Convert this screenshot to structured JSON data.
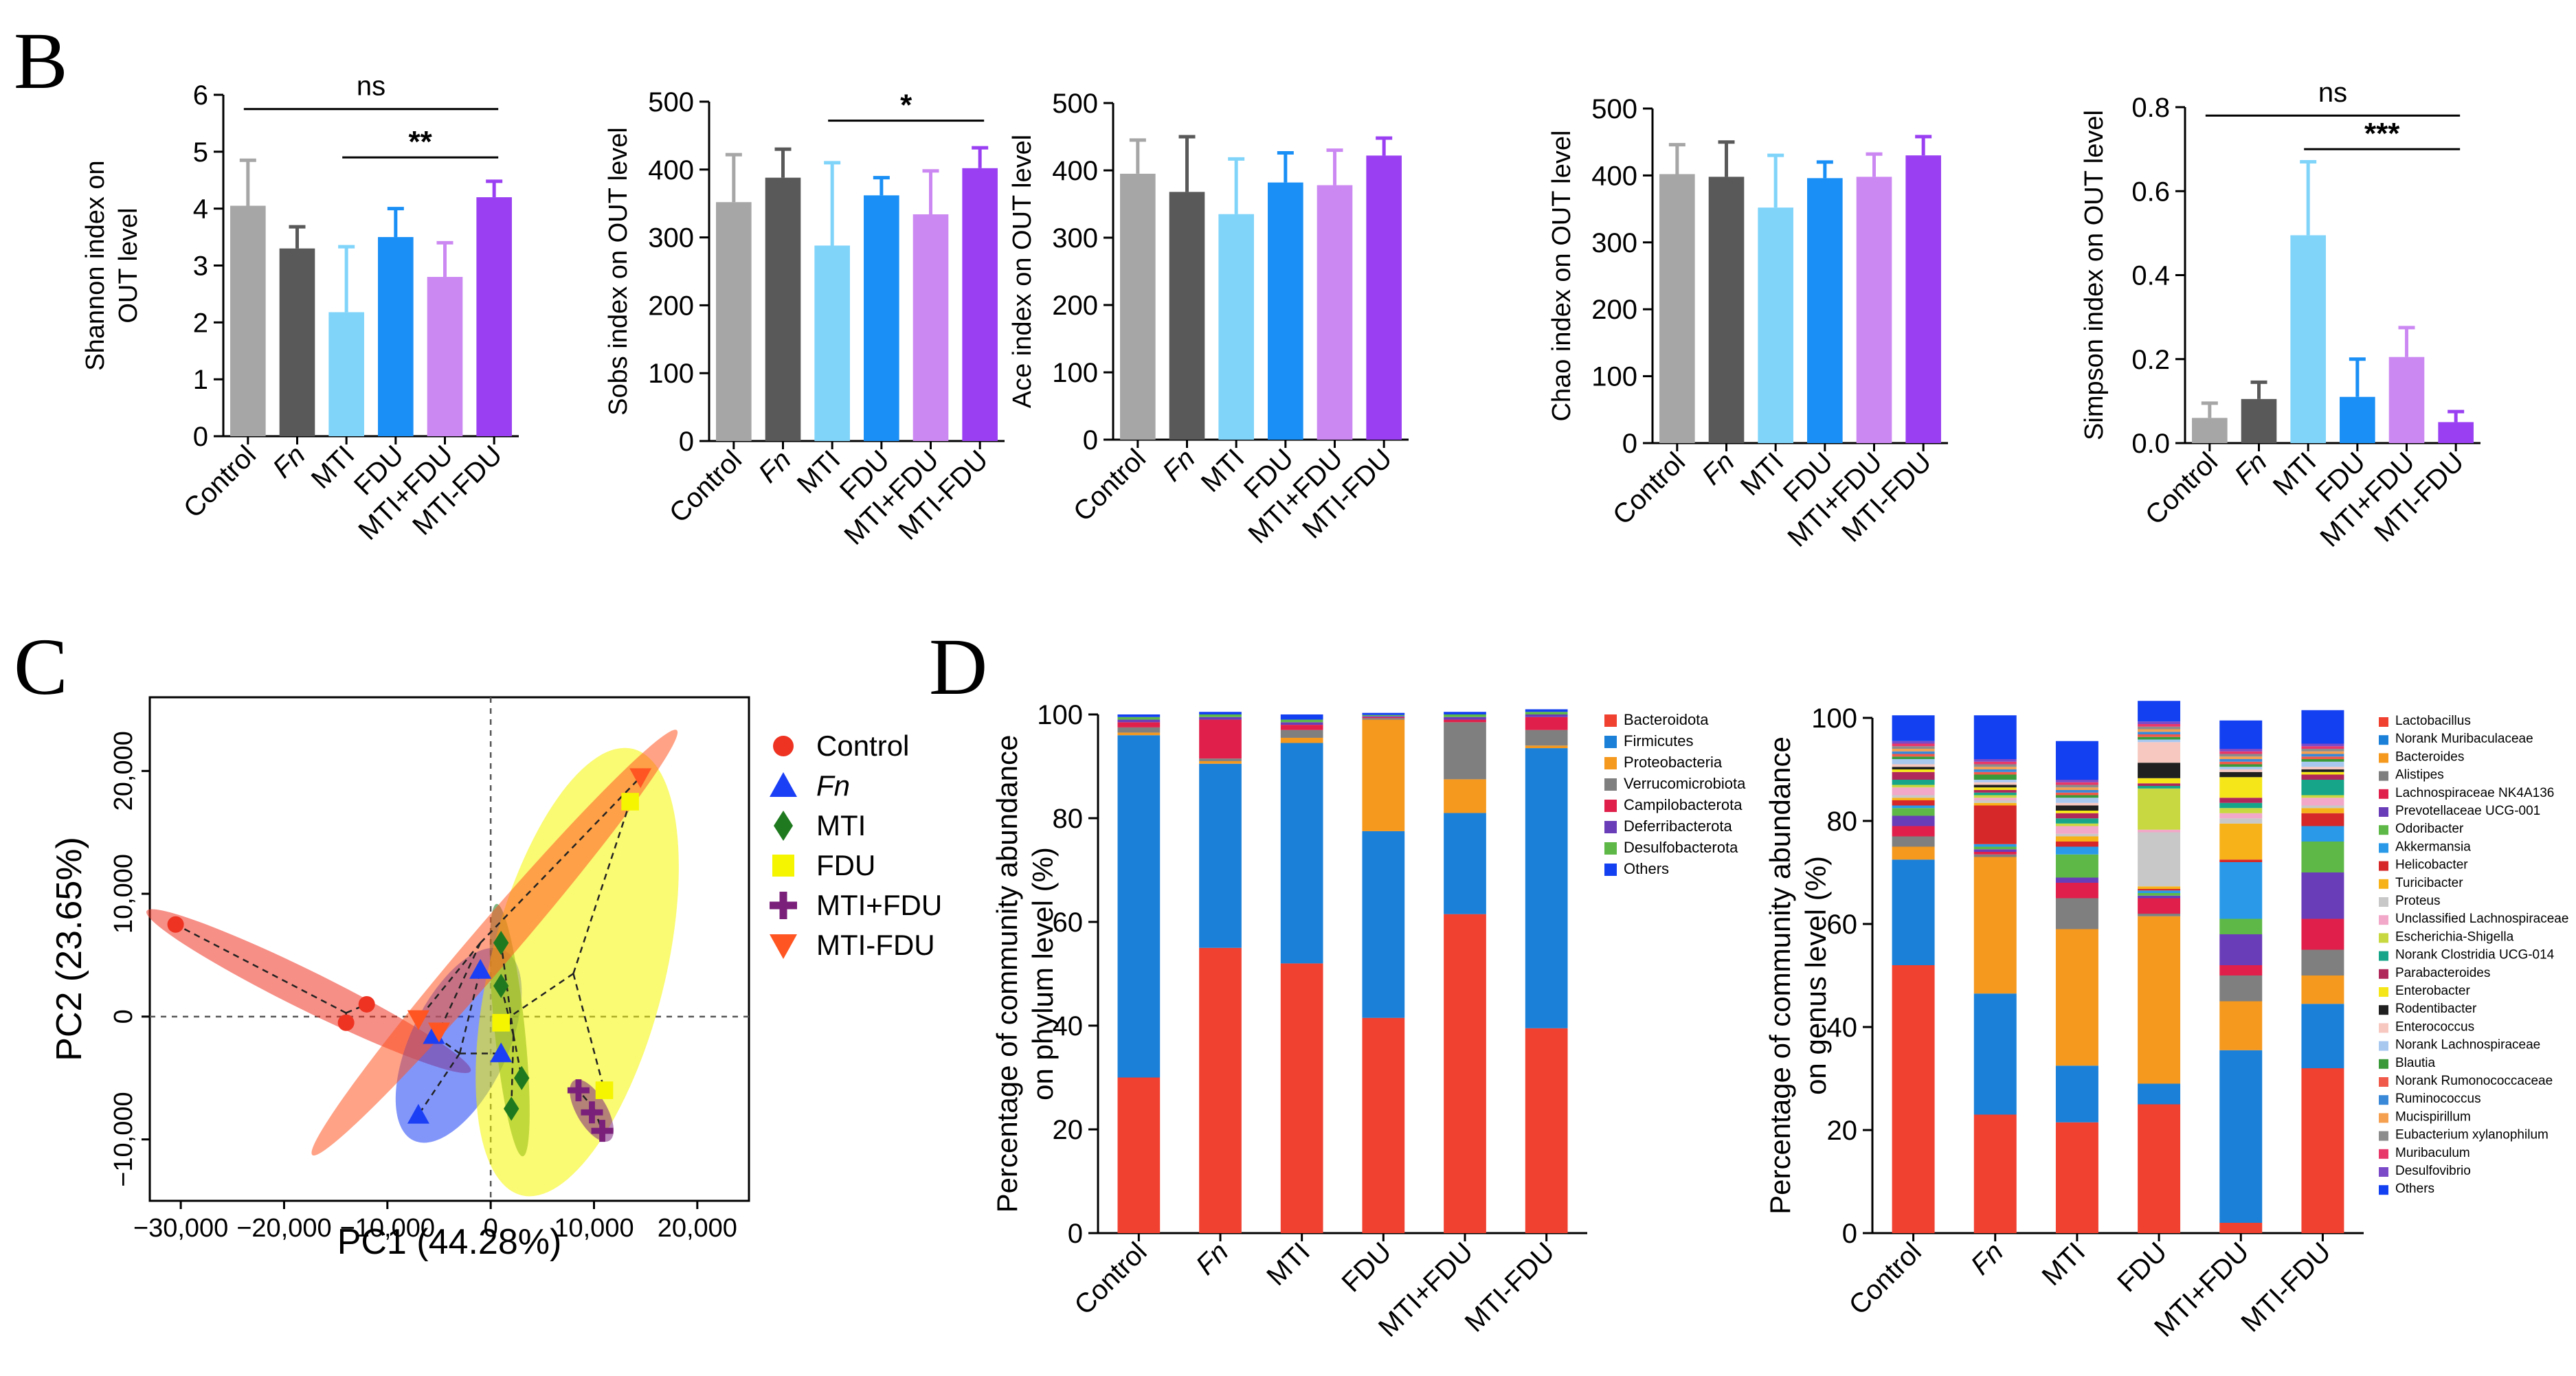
{
  "panel_letters": [
    "B",
    "C",
    "D"
  ],
  "colors": {
    "Control": "#a6a6a6",
    "Fn": "#595959",
    "MTI": "#80d4fa",
    "FDU": "#1a8ff5",
    "MTI+FDU": "#cc88f2",
    "MTI-FDU": "#9a40f2",
    "pca_Control": "#ee3322",
    "pca_Fn": "#1b3ff5",
    "pca_MTI": "#1f7a1f",
    "pca_FDU": "#f5f500",
    "pca_MTI+FDU": "#7a1f7a",
    "pca_MTI-FDU": "#ff5522"
  },
  "chart_data": [
    {
      "id": "shannon",
      "type": "bar",
      "panel": "B",
      "ylabel": [
        "Shannon index on",
        "OUT level"
      ],
      "ylim": [
        0,
        6
      ],
      "yticks": [
        0,
        1,
        2,
        3,
        4,
        5,
        6
      ],
      "categories": [
        "Control",
        "Fn",
        "MTI",
        "FDU",
        "MTI+FDU",
        "MTI-FDU"
      ],
      "values": [
        4.05,
        3.3,
        2.18,
        3.5,
        2.8,
        4.2
      ],
      "errors": [
        0.8,
        0.38,
        1.15,
        0.5,
        0.6,
        0.28
      ],
      "sig": [
        {
          "label": "ns",
          "from": 0,
          "to": 5,
          "y": 5.75
        },
        {
          "label": "**",
          "from": 2,
          "to": 5,
          "y": 4.9
        }
      ]
    },
    {
      "id": "sobs",
      "type": "bar",
      "panel": "B",
      "ylabel": [
        "Sobs index on OUT level"
      ],
      "ylim": [
        0,
        500
      ],
      "yticks": [
        0,
        100,
        200,
        300,
        400,
        500
      ],
      "categories": [
        "Control",
        "Fn",
        "MTI",
        "FDU",
        "MTI+FDU",
        "MTI-FDU"
      ],
      "values": [
        352,
        388,
        288,
        362,
        334,
        402
      ],
      "errors": [
        70,
        42,
        122,
        26,
        64,
        30
      ],
      "sig": [
        {
          "label": "*",
          "from": 2,
          "to": 5,
          "y": 472
        }
      ]
    },
    {
      "id": "ace",
      "type": "bar",
      "panel": "B",
      "ylabel": [
        "Ace index on OUT level"
      ],
      "ylim": [
        0,
        500
      ],
      "yticks": [
        0,
        100,
        200,
        300,
        400,
        500
      ],
      "categories": [
        "Control",
        "Fn",
        "MTI",
        "FDU",
        "MTI+FDU",
        "MTI-FDU"
      ],
      "values": [
        395,
        368,
        335,
        382,
        378,
        422
      ],
      "errors": [
        50,
        82,
        82,
        44,
        52,
        26
      ],
      "sig": []
    },
    {
      "id": "chao",
      "type": "bar",
      "panel": "B",
      "ylabel": [
        "Chao index on OUT level"
      ],
      "ylim": [
        0,
        500
      ],
      "yticks": [
        0,
        100,
        200,
        300,
        400,
        500
      ],
      "categories": [
        "Control",
        "Fn",
        "MTI",
        "FDU",
        "MTI+FDU",
        "MTI-FDU"
      ],
      "values": [
        402,
        398,
        352,
        396,
        398,
        430
      ],
      "errors": [
        44,
        52,
        78,
        24,
        34,
        28
      ],
      "sig": []
    },
    {
      "id": "simpson",
      "type": "bar",
      "panel": "B",
      "ylabel": [
        "Simpson index on OUT level"
      ],
      "ylim": [
        0,
        0.8
      ],
      "yticks": [
        "0.0",
        "0.2",
        "0.4",
        "0.6",
        "0.8"
      ],
      "categories": [
        "Control",
        "Fn",
        "MTI",
        "FDU",
        "MTI+FDU",
        "MTI-FDU"
      ],
      "values": [
        0.06,
        0.105,
        0.495,
        0.11,
        0.205,
        0.05
      ],
      "errors": [
        0.035,
        0.04,
        0.175,
        0.09,
        0.07,
        0.025
      ],
      "sig": [
        {
          "label": "ns",
          "from": 0,
          "to": 5,
          "y": 0.78
        },
        {
          "label": "***",
          "from": 2,
          "to": 5,
          "y": 0.7
        }
      ]
    },
    {
      "id": "pca",
      "type": "scatter",
      "panel": "C",
      "xlabel": "PC1 (44.28%)",
      "ylabel": "PC2 (23.65%)",
      "xlim": [
        -33000,
        25000
      ],
      "ylim": [
        -15000,
        26000
      ],
      "xticks": [
        -30000,
        -20000,
        -10000,
        0,
        10000,
        20000
      ],
      "xtick_labels": [
        "−30,000",
        "−20,000",
        "−10,000",
        "0",
        "10,000",
        "20,000"
      ],
      "yticks": [
        -10000,
        0,
        10000,
        20000
      ],
      "ytick_labels": [
        "−10,000",
        "0",
        "10,000",
        "20,000"
      ],
      "legend": [
        "Control",
        "Fn",
        "MTI",
        "FDU",
        "MTI+FDU",
        "MTI-FDU"
      ],
      "series": [
        {
          "name": "Control",
          "marker": "circle",
          "centroid": [
            -14000,
            300
          ],
          "points": [
            [
              -30500,
              7500
            ],
            [
              -12000,
              1000
            ],
            [
              -14000,
              -500
            ]
          ]
        },
        {
          "name": "Fn",
          "marker": "triangle",
          "centroid": [
            -3000,
            -3000
          ],
          "points": [
            [
              -7000,
              -8000
            ],
            [
              -5500,
              -1500
            ],
            [
              -1000,
              3800
            ],
            [
              1000,
              -3000
            ]
          ]
        },
        {
          "name": "MTI",
          "marker": "diamond",
          "centroid": [
            2200,
            -1500
          ],
          "points": [
            [
              1000,
              6000
            ],
            [
              3000,
              -5000
            ],
            [
              2000,
              -7500
            ],
            [
              1000,
              2500
            ]
          ]
        },
        {
          "name": "FDU",
          "marker": "square",
          "centroid": [
            8000,
            3500
          ],
          "points": [
            [
              13500,
              17500
            ],
            [
              11000,
              -6000
            ],
            [
              1000,
              -500
            ]
          ]
        },
        {
          "name": "MTI+FDU",
          "marker": "plus",
          "centroid": [
            10000,
            -7500
          ],
          "points": [
            [
              8500,
              -6000
            ],
            [
              9800,
              -7800
            ],
            [
              10800,
              -9300
            ]
          ]
        },
        {
          "name": "MTI-FDU",
          "marker": "triangle-down",
          "centroid": [
            -1000,
            6000
          ],
          "points": [
            [
              14500,
              19500
            ],
            [
              -7000,
              -200
            ],
            [
              -5000,
              -1200
            ]
          ]
        }
      ]
    },
    {
      "id": "phylum",
      "type": "stacked-bar",
      "panel": "D",
      "ylabel": [
        "Percentage of community abundance",
        "on phylum level (%)"
      ],
      "ylim": [
        0,
        100
      ],
      "yticks": [
        0,
        20,
        40,
        60,
        80,
        100
      ],
      "categories": [
        "Control",
        "Fn",
        "MTI",
        "FDU",
        "MTI+FDU",
        "MTI-FDU"
      ],
      "series": [
        {
          "name": "Bacteroidota",
          "color": "#f04030",
          "values": [
            30,
            55,
            52,
            41.5,
            61.5,
            39.5
          ]
        },
        {
          "name": "Firmicutes",
          "color": "#1a80d8",
          "values": [
            66,
            35.5,
            42.5,
            36,
            19.5,
            54
          ]
        },
        {
          "name": "Proteobacteria",
          "color": "#f5981e",
          "values": [
            0.5,
            0.5,
            1,
            21.5,
            6.5,
            0.5
          ]
        },
        {
          "name": "Verrucomicrobiota",
          "color": "#7f7f7f",
          "values": [
            1,
            0.5,
            1.5,
            0.3,
            11,
            3
          ]
        },
        {
          "name": "Campilobacterota",
          "color": "#e0204a",
          "values": [
            1,
            7.5,
            1,
            0.2,
            0.5,
            2.5
          ]
        },
        {
          "name": "Deferribacterota",
          "color": "#6a3db8",
          "values": [
            0.5,
            0.5,
            0.5,
            0.2,
            0.5,
            0.5
          ]
        },
        {
          "name": "Desulfobacterota",
          "color": "#5eb848",
          "values": [
            0.5,
            0.5,
            0.5,
            0.2,
            0.5,
            0.5
          ]
        },
        {
          "name": "Others",
          "color": "#1340f0",
          "values": [
            0.5,
            0.5,
            1,
            0.4,
            0.5,
            0.5
          ]
        }
      ]
    },
    {
      "id": "genus",
      "type": "stacked-bar",
      "panel": "D",
      "ylabel": [
        "Percentage of community abundance",
        "on genus level (%)"
      ],
      "ylim": [
        0,
        100
      ],
      "yticks": [
        0,
        20,
        40,
        60,
        80,
        100
      ],
      "categories": [
        "Control",
        "Fn",
        "MTI",
        "FDU",
        "MTI+FDU",
        "MTI-FDU"
      ],
      "series": [
        {
          "name": "Lactobacillus",
          "color": "#f04030",
          "values": [
            52,
            23,
            21.5,
            25,
            2,
            32
          ]
        },
        {
          "name": "Norank Muribaculaceae",
          "color": "#1a80d8",
          "values": [
            20.5,
            23.5,
            11,
            4,
            33.5,
            12.5
          ]
        },
        {
          "name": "Bacteroides",
          "color": "#f5981e",
          "values": [
            2.5,
            26.5,
            26.5,
            32.5,
            9.5,
            5.5
          ]
        },
        {
          "name": "Alistipes",
          "color": "#7f7f7f",
          "values": [
            2,
            0.5,
            6,
            0.5,
            5,
            5
          ]
        },
        {
          "name": "Lachnospiraceae NK4A136",
          "color": "#e0204a",
          "values": [
            2,
            0.5,
            3,
            3,
            2,
            6
          ]
        },
        {
          "name": "Prevotellaceae UCG-001",
          "color": "#6a3db8",
          "values": [
            2,
            0.5,
            1,
            0.5,
            6,
            9
          ]
        },
        {
          "name": "Odoribacter",
          "color": "#5eb848",
          "values": [
            1.5,
            0.5,
            4.5,
            0.5,
            3,
            6
          ]
        },
        {
          "name": "Akkermansia",
          "color": "#2a9ae8",
          "values": [
            0.5,
            0.5,
            1.5,
            0.5,
            11,
            3
          ]
        },
        {
          "name": "Helicobacter",
          "color": "#d62828",
          "values": [
            1,
            7.5,
            1,
            0.3,
            0.5,
            2.5
          ]
        },
        {
          "name": "Turicibacter",
          "color": "#f7b21a",
          "values": [
            0.5,
            0.5,
            1,
            0.5,
            7,
            1
          ]
        },
        {
          "name": "Proteus",
          "color": "#c8c8c8",
          "values": [
            0.5,
            0.5,
            0.5,
            10.5,
            1,
            0.5
          ]
        },
        {
          "name": "Unclassified Lachnospiraceae",
          "color": "#f2a8c8",
          "values": [
            1.5,
            0.5,
            1.5,
            0.5,
            1,
            1.5
          ]
        },
        {
          "name": "Escherichia-Shigella",
          "color": "#c8d840",
          "values": [
            0.5,
            0.5,
            0.5,
            8,
            1,
            0.5
          ]
        },
        {
          "name": "Norank Clostridia UCG-014",
          "color": "#17a589",
          "values": [
            1,
            0.5,
            1,
            0.5,
            1,
            3
          ]
        },
        {
          "name": "Parabacteroides",
          "color": "#b0285a",
          "values": [
            1.5,
            0.5,
            1,
            0.5,
            1,
            1
          ]
        },
        {
          "name": "Enterobacter",
          "color": "#f5e61a",
          "values": [
            0.5,
            0.5,
            0.5,
            1,
            4,
            0.5
          ]
        },
        {
          "name": "Rodentibacter",
          "color": "#202020",
          "values": [
            0.5,
            0.5,
            1,
            3,
            1,
            0.5
          ]
        },
        {
          "name": "Enterococcus",
          "color": "#f7c8c0",
          "values": [
            0.5,
            0.5,
            0.5,
            4,
            0.5,
            0.5
          ]
        },
        {
          "name": "Norank Lachnospiraceae",
          "color": "#a8c8f0",
          "values": [
            1,
            0.5,
            1,
            0.5,
            0.5,
            1
          ]
        },
        {
          "name": "Blautia",
          "color": "#3a9a3a",
          "values": [
            0.5,
            1,
            0.5,
            0.5,
            0.5,
            0.5
          ]
        },
        {
          "name": "Norank Rumonococcaceae",
          "color": "#f05a4a",
          "values": [
            0.5,
            0.5,
            0.5,
            0.5,
            0.5,
            0.5
          ]
        },
        {
          "name": "Ruminococcus",
          "color": "#3a88d8",
          "values": [
            0.5,
            0.5,
            0.5,
            0.5,
            0.5,
            0.5
          ]
        },
        {
          "name": "Mucispirillum",
          "color": "#f5a050",
          "values": [
            0.5,
            0.5,
            0.5,
            0.5,
            0.5,
            0.5
          ]
        },
        {
          "name": "Eubacterium xylanophilum",
          "color": "#8c8c8c",
          "values": [
            0.5,
            0.5,
            0.5,
            0.5,
            0.5,
            0.5
          ]
        },
        {
          "name": "Muribaculum",
          "color": "#e8386a",
          "values": [
            0.5,
            0.5,
            0.5,
            0.5,
            0.5,
            0.5
          ]
        },
        {
          "name": "Desulfovibrio",
          "color": "#7a4ac8",
          "values": [
            0.5,
            0.5,
            0.5,
            0.5,
            0.5,
            0.5
          ]
        },
        {
          "name": "Others",
          "color": "#1340f0",
          "values": [
            5,
            8.5,
            7.5,
            4,
            5.5,
            6.5
          ]
        }
      ]
    }
  ]
}
